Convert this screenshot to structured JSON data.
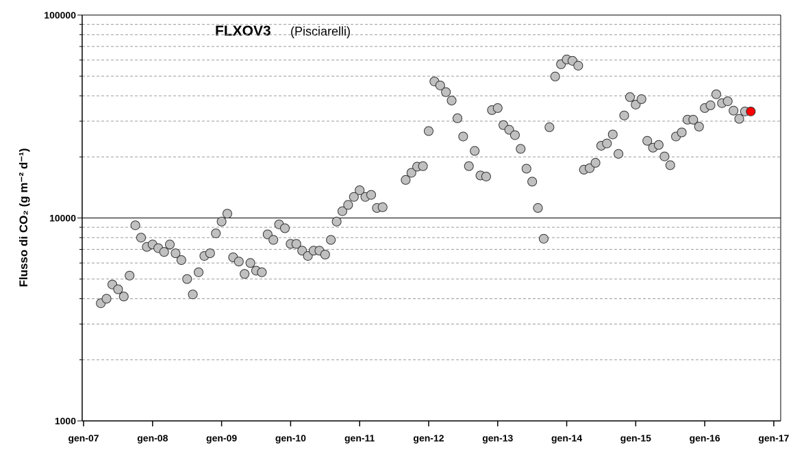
{
  "chart_data": {
    "type": "scatter",
    "title": "FLXOV3",
    "subtitle": "(Pisciarelli)",
    "y_label": "Flusso di CO₂ (g m⁻² d⁻¹)",
    "log_y": true,
    "ylim": [
      1000,
      100000
    ],
    "yticks": [
      1000,
      10000,
      100000
    ],
    "y_minor_grid": [
      2000,
      3000,
      4000,
      5000,
      6000,
      7000,
      8000,
      9000,
      20000,
      30000,
      40000,
      50000,
      60000,
      70000,
      80000,
      90000
    ],
    "xlim": [
      2006.98,
      2017.1
    ],
    "xticks": [
      {
        "value": 2007,
        "label": "gen-07"
      },
      {
        "value": 2008,
        "label": "gen-08"
      },
      {
        "value": 2009,
        "label": "gen-09"
      },
      {
        "value": 2010,
        "label": "gen-10"
      },
      {
        "value": 2011,
        "label": "gen-11"
      },
      {
        "value": 2012,
        "label": "gen-12"
      },
      {
        "value": 2013,
        "label": "gen-13"
      },
      {
        "value": 2014,
        "label": "gen-14"
      },
      {
        "value": 2015,
        "label": "gen-15"
      },
      {
        "value": 2016,
        "label": "gen-16"
      },
      {
        "value": 2017,
        "label": "gen-17"
      }
    ],
    "series": [
      {
        "color": "#c0c0c0",
        "x": [
          2007.25,
          2007.333,
          2007.417,
          2007.5,
          2007.583,
          2007.667,
          2007.75,
          2007.833,
          2007.917,
          2008.0,
          2008.083,
          2008.167,
          2008.25,
          2008.333,
          2008.417,
          2008.5,
          2008.583,
          2008.667,
          2008.75,
          2008.833,
          2008.917,
          2009.0,
          2009.083,
          2009.167,
          2009.25,
          2009.333,
          2009.417,
          2009.5,
          2009.583,
          2009.667,
          2009.75,
          2009.833,
          2009.917,
          2010.0,
          2010.083,
          2010.167,
          2010.25,
          2010.333,
          2010.417,
          2010.5,
          2010.583,
          2010.667,
          2010.75,
          2010.833,
          2010.917,
          2011.0,
          2011.083,
          2011.167,
          2011.25,
          2011.333,
          2011.667,
          2011.75,
          2011.833,
          2011.917,
          2012.0,
          2012.083,
          2012.167,
          2012.25,
          2012.333,
          2012.417,
          2012.5,
          2012.583,
          2012.667,
          2012.75,
          2012.833,
          2012.917,
          2013.0,
          2013.083,
          2013.167,
          2013.25,
          2013.333,
          2013.417,
          2013.5,
          2013.583,
          2013.667,
          2013.75,
          2013.833,
          2013.917,
          2014.0,
          2014.083,
          2014.167,
          2014.25,
          2014.333,
          2014.417,
          2014.5,
          2014.583,
          2014.667,
          2014.75,
          2014.833,
          2014.917,
          2015.0,
          2015.083,
          2015.167,
          2015.25,
          2015.333,
          2015.417,
          2015.5,
          2015.583,
          2015.667,
          2015.75,
          2015.833,
          2015.917,
          2016.0,
          2016.083,
          2016.167,
          2016.25,
          2016.333,
          2016.417,
          2016.5,
          2016.583
        ],
        "values": [
          3800,
          4000,
          4700,
          4450,
          4100,
          5200,
          9200,
          8000,
          7200,
          7400,
          7100,
          6800,
          7400,
          6700,
          6200,
          5000,
          4200,
          5400,
          6500,
          6700,
          8400,
          9600,
          10500,
          6400,
          6100,
          5300,
          6000,
          5500,
          5400,
          8300,
          7800,
          9300,
          8900,
          7450,
          7450,
          6900,
          6500,
          6900,
          6900,
          6600,
          7800,
          9600,
          10800,
          11600,
          12700,
          13700,
          12700,
          13000,
          11200,
          11300,
          15400,
          16700,
          17900,
          18000,
          26800,
          47100,
          45000,
          41700,
          37900,
          31000,
          25200,
          18000,
          21400,
          16200,
          16000,
          34000,
          34800,
          28700,
          27200,
          25600,
          21900,
          17500,
          15100,
          11200,
          7900,
          28000,
          49800,
          57200,
          60400,
          59500,
          56300,
          17300,
          17600,
          18700,
          22700,
          23300,
          25800,
          20700,
          32000,
          39400,
          36200,
          38500,
          24000,
          22200,
          22900,
          20100,
          18200,
          25200,
          26400,
          30500,
          30500,
          28200,
          34800,
          35900,
          40700,
          36800,
          37600,
          33800,
          30800,
          33500
        ]
      },
      {
        "color": "#ff0000",
        "x": [
          2016.667
        ],
        "values": [
          33500
        ]
      }
    ]
  }
}
